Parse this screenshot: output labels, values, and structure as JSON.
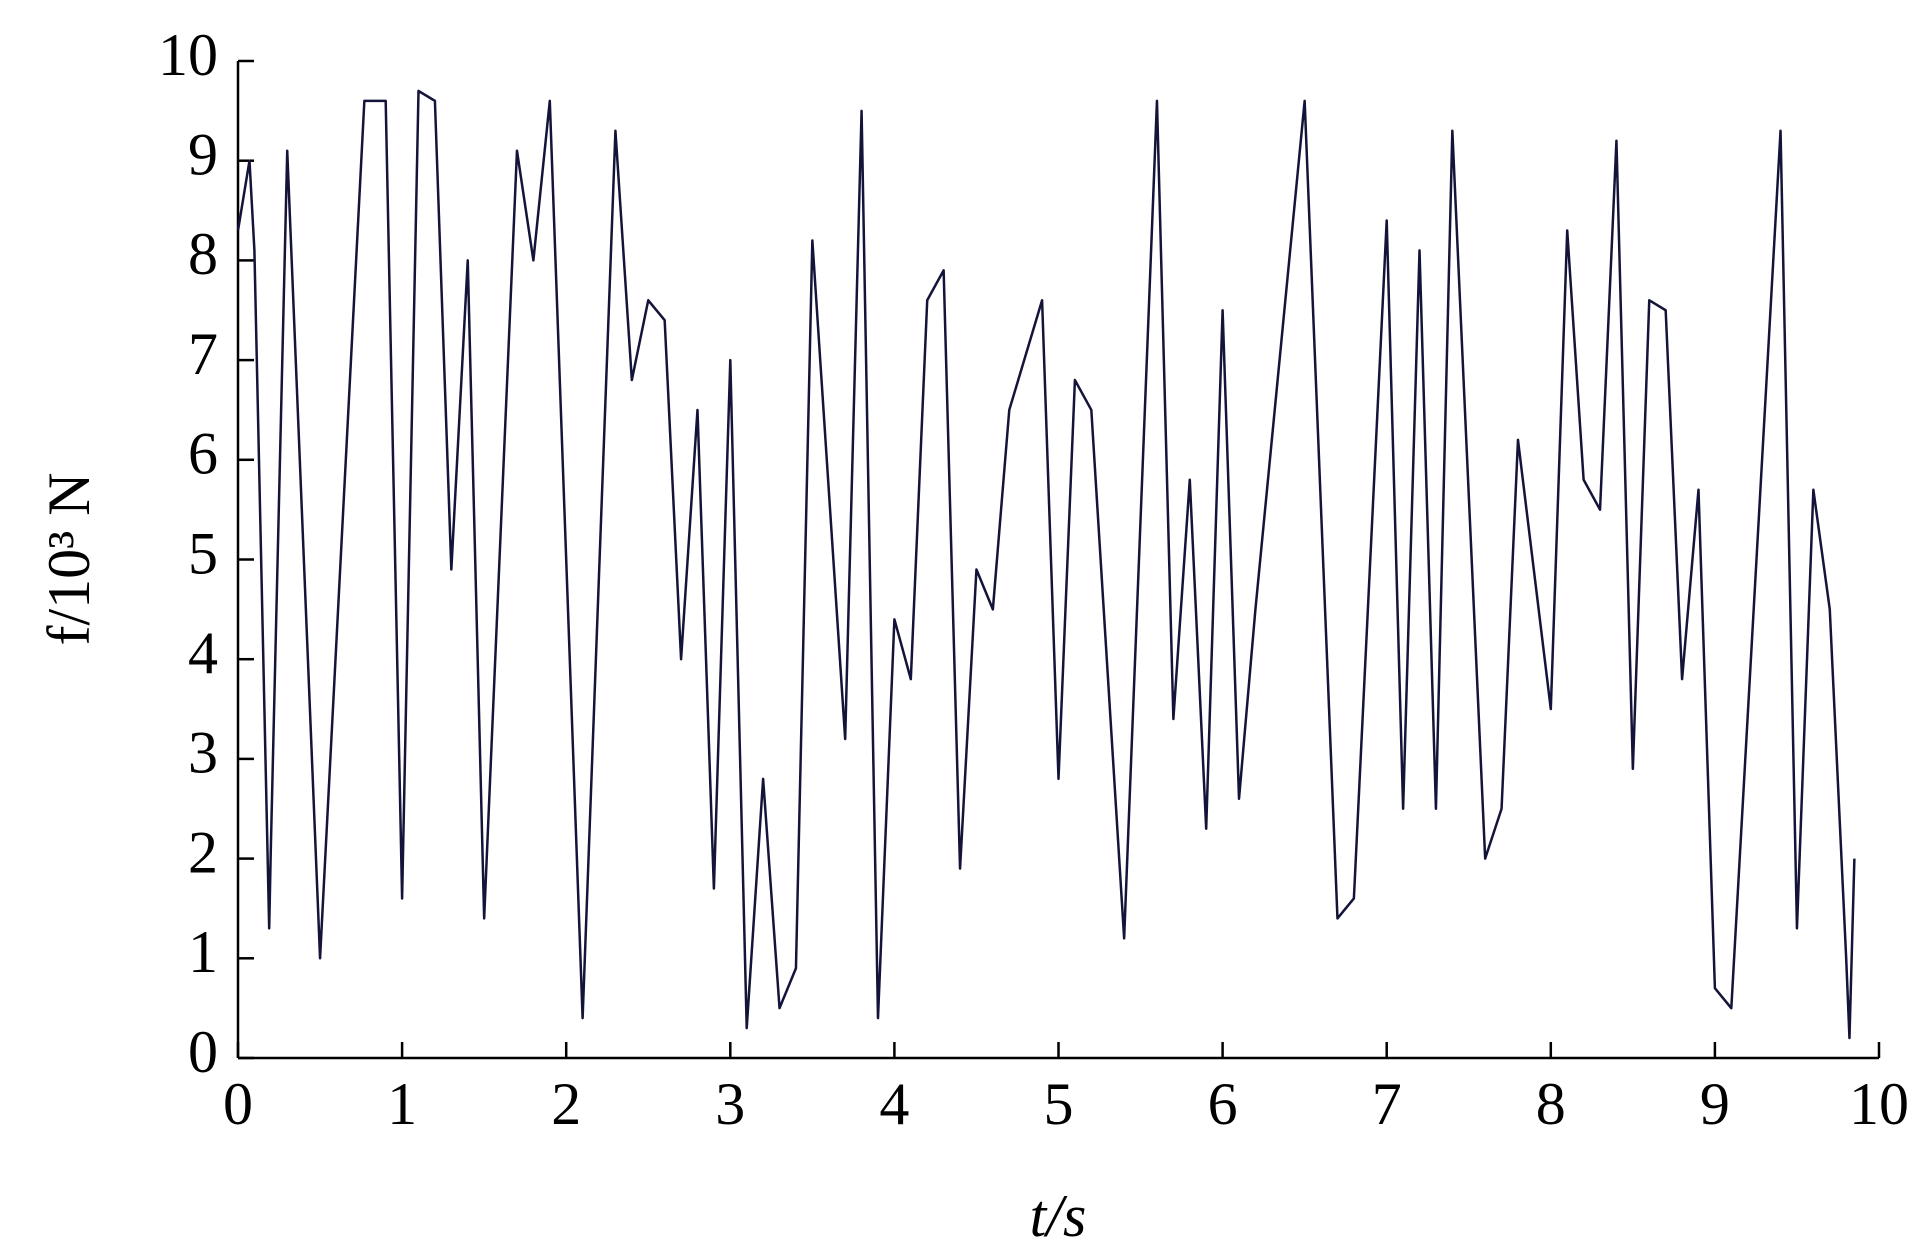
{
  "chart_data": {
    "type": "line",
    "xlabel": "t/s",
    "ylabel": "f/10³ N",
    "xlim": [
      0,
      10
    ],
    "ylim": [
      0,
      10
    ],
    "xticks": [
      0,
      1,
      2,
      3,
      4,
      5,
      6,
      7,
      8,
      9,
      10
    ],
    "yticks": [
      0,
      1,
      2,
      3,
      4,
      5,
      6,
      7,
      8,
      9,
      10
    ],
    "grid": false,
    "series": [
      {
        "color": "#14143a",
        "x": [
          0,
          0.07,
          0.1,
          0.19,
          0.2,
          0.3,
          0.5,
          0.77,
          0.9,
          1.0,
          1.1,
          1.2,
          1.3,
          1.4,
          1.5,
          1.7,
          1.8,
          1.9,
          2.1,
          2.3,
          2.4,
          2.5,
          2.6,
          2.7,
          2.8,
          2.9,
          3.0,
          3.1,
          3.2,
          3.3,
          3.4,
          3.5,
          3.7,
          3.8,
          3.9,
          4.0,
          4.1,
          4.2,
          4.3,
          4.4,
          4.5,
          4.6,
          4.7,
          4.9,
          5.0,
          5.1,
          5.2,
          5.4,
          5.6,
          5.7,
          5.8,
          5.9,
          6.0,
          6.1,
          6.2,
          6.5,
          6.7,
          6.8,
          7.0,
          7.1,
          7.2,
          7.3,
          7.4,
          7.6,
          7.7,
          7.8,
          8.0,
          8.1,
          8.2,
          8.3,
          8.4,
          8.5,
          8.6,
          8.7,
          8.8,
          8.9,
          9.0,
          9.1,
          9.4,
          9.5,
          9.6,
          9.7,
          9.8,
          9.82,
          9.85
        ],
        "values": [
          8.3,
          9.0,
          8.1,
          1.3,
          2.1,
          9.1,
          1.0,
          9.6,
          9.6,
          1.6,
          9.7,
          9.6,
          4.9,
          8.0,
          1.4,
          9.1,
          8.0,
          9.6,
          0.4,
          9.3,
          6.8,
          7.6,
          7.4,
          4.0,
          6.5,
          1.7,
          7.0,
          0.3,
          2.8,
          0.5,
          0.9,
          8.2,
          3.2,
          9.5,
          0.4,
          4.4,
          3.8,
          7.6,
          7.9,
          1.9,
          4.9,
          4.5,
          6.5,
          7.6,
          2.8,
          6.8,
          6.5,
          1.2,
          9.6,
          3.4,
          5.8,
          2.3,
          7.5,
          2.6,
          4.5,
          9.6,
          1.4,
          1.6,
          8.4,
          2.5,
          8.1,
          2.5,
          9.3,
          2.0,
          2.5,
          6.2,
          3.5,
          8.3,
          5.8,
          5.5,
          9.2,
          2.9,
          7.6,
          7.5,
          3.8,
          5.7,
          0.7,
          0.5,
          9.3,
          1.3,
          5.7,
          4.5,
          1.0,
          0.2,
          2.0
        ]
      }
    ]
  }
}
